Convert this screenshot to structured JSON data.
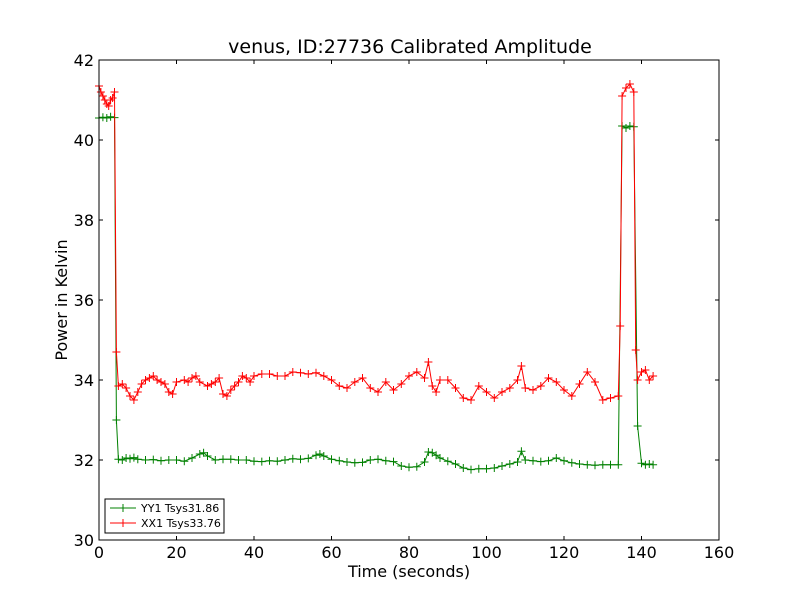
{
  "chart_data": {
    "type": "line",
    "title": "venus, ID:27736 Calibrated Amplitude",
    "xlabel": "Time (seconds)",
    "ylabel": "Power in Kelvin",
    "xlim": [
      0,
      160
    ],
    "ylim": [
      30,
      42
    ],
    "xticks": [
      "0",
      "20",
      "40",
      "60",
      "80",
      "100",
      "120",
      "140",
      "160"
    ],
    "yticks": [
      "30",
      "32",
      "34",
      "36",
      "38",
      "40",
      "42"
    ],
    "grid": false,
    "legend_position": "lower-left",
    "marker": "+",
    "series": [
      {
        "name": "YY1 Tsys31.86",
        "color": "#008000",
        "x": [
          0,
          1,
          2,
          3,
          4,
          4.5,
          5,
          6,
          7,
          8,
          9,
          10,
          12,
          14,
          16,
          18,
          20,
          22,
          24,
          26,
          27,
          28,
          30,
          32,
          34,
          36,
          38,
          40,
          42,
          44,
          46,
          48,
          50,
          52,
          54,
          56,
          57,
          58,
          60,
          62,
          64,
          66,
          68,
          70,
          72,
          74,
          76,
          78,
          80,
          82,
          84,
          85,
          86,
          87,
          88,
          90,
          92,
          94,
          96,
          98,
          100,
          102,
          104,
          106,
          108,
          109,
          110,
          112,
          114,
          116,
          118,
          120,
          122,
          124,
          126,
          128,
          130,
          132,
          134,
          135,
          136,
          137,
          138,
          139,
          140,
          141,
          142,
          143
        ],
        "values": [
          40.55,
          40.57,
          40.55,
          40.58,
          40.56,
          33.0,
          32.02,
          32.0,
          32.05,
          32.03,
          32.06,
          32.02,
          32.0,
          32.01,
          31.98,
          32.0,
          32.0,
          31.97,
          32.05,
          32.15,
          32.18,
          32.1,
          32.0,
          32.02,
          32.02,
          32.0,
          32.0,
          31.97,
          31.96,
          31.98,
          31.97,
          32.0,
          32.03,
          32.02,
          32.04,
          32.12,
          32.15,
          32.1,
          32.02,
          31.98,
          31.95,
          31.93,
          31.94,
          32.0,
          32.02,
          31.98,
          31.96,
          31.85,
          31.82,
          31.83,
          31.95,
          32.2,
          32.18,
          32.12,
          32.05,
          31.97,
          31.9,
          31.8,
          31.76,
          31.78,
          31.78,
          31.8,
          31.85,
          31.9,
          31.95,
          32.22,
          32.0,
          31.98,
          31.96,
          31.98,
          32.05,
          31.98,
          31.93,
          31.9,
          31.88,
          31.87,
          31.88,
          31.88,
          31.88,
          40.35,
          40.3,
          40.35,
          40.33,
          32.85,
          31.92,
          31.88,
          31.9,
          31.88
        ]
      },
      {
        "name": "XX1 Tsys33.76",
        "color": "#ff0000",
        "x": [
          0,
          0.5,
          1,
          1.5,
          2,
          2.5,
          3,
          3.5,
          4,
          4.5,
          5,
          6,
          7,
          8,
          9,
          10,
          11,
          12,
          13,
          14,
          15,
          16,
          17,
          18,
          19,
          20,
          22,
          23,
          24,
          25,
          26,
          28,
          29,
          30,
          31,
          32,
          33,
          34,
          35,
          36,
          37,
          38,
          39,
          40,
          42,
          44,
          46,
          48,
          50,
          52,
          54,
          56,
          58,
          60,
          62,
          64,
          66,
          68,
          70,
          72,
          74,
          76,
          78,
          80,
          82,
          84,
          85,
          86,
          87,
          88,
          90,
          92,
          94,
          96,
          98,
          100,
          102,
          104,
          106,
          108,
          109,
          110,
          112,
          114,
          116,
          118,
          120,
          122,
          124,
          126,
          128,
          130,
          132,
          134,
          134.5,
          135,
          136,
          137,
          138,
          138.5,
          139,
          140,
          141,
          142,
          143
        ],
        "values": [
          41.35,
          41.2,
          41.1,
          41.0,
          40.9,
          40.85,
          41.0,
          41.05,
          41.2,
          34.7,
          33.85,
          33.9,
          33.8,
          33.6,
          33.5,
          33.7,
          33.9,
          34.0,
          34.05,
          34.1,
          34.0,
          33.95,
          33.9,
          33.7,
          33.65,
          33.95,
          34.0,
          33.95,
          34.05,
          34.1,
          33.95,
          33.85,
          33.9,
          33.95,
          34.05,
          33.65,
          33.6,
          33.75,
          33.85,
          33.95,
          34.1,
          34.05,
          33.95,
          34.1,
          34.15,
          34.15,
          34.1,
          34.1,
          34.2,
          34.18,
          34.15,
          34.18,
          34.1,
          34.0,
          33.85,
          33.8,
          33.95,
          34.05,
          33.8,
          33.7,
          33.95,
          33.75,
          33.9,
          34.1,
          34.2,
          34.05,
          34.45,
          33.85,
          33.7,
          34.0,
          34.0,
          33.8,
          33.55,
          33.5,
          33.85,
          33.7,
          33.55,
          33.7,
          33.8,
          34.0,
          34.35,
          33.8,
          33.75,
          33.85,
          34.05,
          33.95,
          33.75,
          33.6,
          33.9,
          34.2,
          33.95,
          33.5,
          33.55,
          33.6,
          35.35,
          41.1,
          41.3,
          41.4,
          41.2,
          34.75,
          34.0,
          34.2,
          34.25,
          34.0,
          34.1
        ]
      }
    ]
  }
}
